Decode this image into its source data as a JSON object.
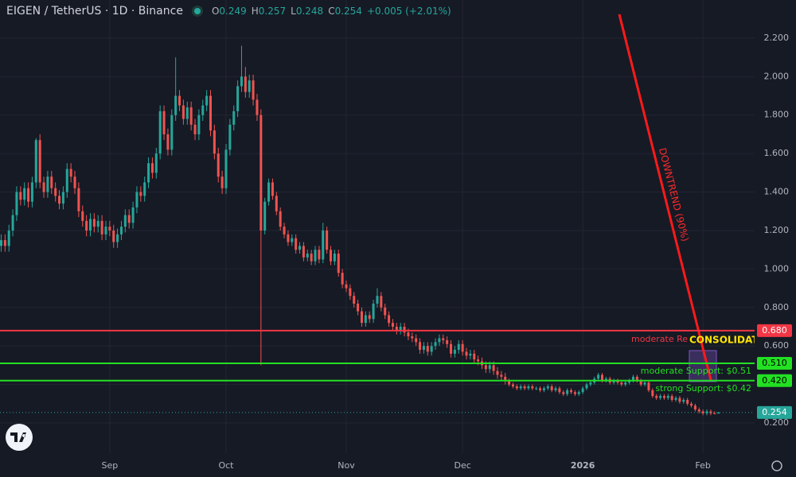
{
  "chart_data": {
    "type": "candlestick",
    "title": "EIGEN / TetherUS · 1D · Binance",
    "ohlc_labels": [
      "O",
      "H",
      "L",
      "C"
    ],
    "change_label": "+0.005 (+2.01%)",
    "up_color": "#26a69a",
    "down_color": "#ef5350",
    "open": [
      1.12,
      1.15,
      1.12,
      1.2,
      1.28,
      1.4,
      1.36,
      1.42,
      1.35,
      1.45,
      1.67,
      1.45,
      1.4,
      1.48,
      1.42,
      1.38,
      1.34,
      1.4,
      1.52,
      1.48,
      1.42,
      1.3,
      1.25,
      1.2,
      1.26,
      1.22,
      1.25,
      1.18,
      1.22,
      1.2,
      1.14,
      1.18,
      1.22,
      1.28,
      1.24,
      1.32,
      1.4,
      1.38,
      1.45,
      1.55,
      1.5,
      1.6,
      1.82,
      1.7,
      1.62,
      1.8,
      1.9,
      1.85,
      1.78,
      1.84,
      1.75,
      1.7,
      1.8,
      1.85,
      1.9,
      1.72,
      1.6,
      1.48,
      1.42,
      1.62,
      1.75,
      1.82,
      1.95,
      2.0,
      1.92,
      1.98,
      1.88,
      1.8,
      1.2,
      1.35,
      1.45,
      1.38,
      1.3,
      1.22,
      1.18,
      1.14,
      1.16,
      1.1,
      1.12,
      1.06,
      1.08,
      1.04,
      1.1,
      1.05,
      1.2,
      1.1,
      1.04,
      1.08,
      0.98,
      0.92,
      0.9,
      0.86,
      0.82,
      0.78,
      0.72,
      0.76,
      0.74,
      0.82,
      0.86,
      0.8,
      0.76,
      0.72,
      0.7,
      0.68,
      0.7,
      0.67,
      0.65,
      0.64,
      0.62,
      0.58,
      0.6,
      0.57,
      0.6,
      0.62,
      0.64,
      0.63,
      0.61,
      0.56,
      0.58,
      0.61,
      0.57,
      0.55,
      0.56,
      0.53,
      0.52,
      0.5,
      0.48,
      0.5,
      0.47,
      0.45,
      0.44,
      0.42,
      0.4,
      0.39,
      0.38,
      0.39,
      0.38,
      0.39,
      0.38,
      0.38,
      0.37,
      0.38,
      0.39,
      0.37,
      0.38,
      0.36,
      0.35,
      0.37,
      0.36,
      0.35,
      0.36,
      0.38,
      0.4,
      0.41,
      0.43,
      0.45,
      0.42,
      0.43,
      0.41,
      0.42,
      0.41,
      0.4,
      0.41,
      0.42,
      0.44,
      0.42,
      0.4,
      0.41,
      0.37,
      0.34,
      0.33,
      0.34,
      0.33,
      0.34,
      0.32,
      0.33,
      0.31,
      0.32,
      0.3,
      0.29,
      0.27,
      0.26,
      0.25,
      0.26,
      0.25,
      0.249
    ],
    "high": [
      1.18,
      1.18,
      1.23,
      1.31,
      1.43,
      1.43,
      1.45,
      1.45,
      1.48,
      1.68,
      1.7,
      1.48,
      1.51,
      1.51,
      1.45,
      1.41,
      1.43,
      1.55,
      1.55,
      1.51,
      1.45,
      1.33,
      1.28,
      1.29,
      1.29,
      1.28,
      1.28,
      1.25,
      1.25,
      1.23,
      1.21,
      1.25,
      1.31,
      1.31,
      1.35,
      1.43,
      1.43,
      1.48,
      1.58,
      1.58,
      1.63,
      1.85,
      1.85,
      1.73,
      1.83,
      2.1,
      1.93,
      1.88,
      1.87,
      1.87,
      1.78,
      1.83,
      1.88,
      1.93,
      1.93,
      1.75,
      1.63,
      1.51,
      1.65,
      1.78,
      1.85,
      1.98,
      2.16,
      2.05,
      2.01,
      2.01,
      1.91,
      1.83,
      1.37,
      1.47,
      1.47,
      1.4,
      1.32,
      1.24,
      1.2,
      1.18,
      1.18,
      1.14,
      1.14,
      1.1,
      1.1,
      1.12,
      1.12,
      1.24,
      1.22,
      1.12,
      1.1,
      1.1,
      1.0,
      0.94,
      0.92,
      0.88,
      0.84,
      0.8,
      0.78,
      0.78,
      0.84,
      0.9,
      0.88,
      0.82,
      0.78,
      0.74,
      0.72,
      0.72,
      0.72,
      0.69,
      0.67,
      0.66,
      0.64,
      0.62,
      0.62,
      0.62,
      0.64,
      0.66,
      0.66,
      0.65,
      0.63,
      0.6,
      0.63,
      0.63,
      0.59,
      0.58,
      0.58,
      0.55,
      0.54,
      0.52,
      0.52,
      0.52,
      0.49,
      0.47,
      0.46,
      0.43,
      0.41,
      0.4,
      0.4,
      0.4,
      0.4,
      0.4,
      0.39,
      0.39,
      0.39,
      0.4,
      0.4,
      0.39,
      0.39,
      0.37,
      0.38,
      0.38,
      0.37,
      0.37,
      0.39,
      0.41,
      0.42,
      0.44,
      0.46,
      0.46,
      0.44,
      0.44,
      0.43,
      0.43,
      0.42,
      0.42,
      0.43,
      0.45,
      0.45,
      0.43,
      0.42,
      0.42,
      0.38,
      0.35,
      0.35,
      0.35,
      0.35,
      0.35,
      0.34,
      0.34,
      0.33,
      0.33,
      0.31,
      0.3,
      0.28,
      0.27,
      0.27,
      0.27,
      0.26,
      0.257
    ],
    "low": [
      1.09,
      1.09,
      1.09,
      1.17,
      1.25,
      1.33,
      1.33,
      1.32,
      1.32,
      1.42,
      1.42,
      1.37,
      1.37,
      1.39,
      1.35,
      1.31,
      1.31,
      1.37,
      1.45,
      1.39,
      1.27,
      1.22,
      1.17,
      1.17,
      1.19,
      1.19,
      1.15,
      1.15,
      1.17,
      1.11,
      1.11,
      1.15,
      1.19,
      1.21,
      1.21,
      1.29,
      1.35,
      1.35,
      1.42,
      1.47,
      1.47,
      1.57,
      1.67,
      1.59,
      1.59,
      1.77,
      1.82,
      1.75,
      1.75,
      1.72,
      1.67,
      1.67,
      1.77,
      1.82,
      1.69,
      1.57,
      1.45,
      1.39,
      1.39,
      1.59,
      1.72,
      1.79,
      1.92,
      1.89,
      1.89,
      1.85,
      1.77,
      0.5,
      1.18,
      1.33,
      1.36,
      1.28,
      1.2,
      1.16,
      1.12,
      1.12,
      1.08,
      1.08,
      1.04,
      1.04,
      1.02,
      1.02,
      1.03,
      1.03,
      1.08,
      1.02,
      1.02,
      0.96,
      0.9,
      0.88,
      0.84,
      0.8,
      0.76,
      0.7,
      0.7,
      0.72,
      0.72,
      0.8,
      0.78,
      0.74,
      0.7,
      0.68,
      0.66,
      0.66,
      0.65,
      0.63,
      0.62,
      0.6,
      0.56,
      0.56,
      0.55,
      0.55,
      0.58,
      0.6,
      0.61,
      0.59,
      0.54,
      0.54,
      0.56,
      0.55,
      0.53,
      0.53,
      0.51,
      0.5,
      0.48,
      0.46,
      0.46,
      0.45,
      0.43,
      0.42,
      0.4,
      0.39,
      0.38,
      0.37,
      0.37,
      0.37,
      0.37,
      0.37,
      0.37,
      0.36,
      0.36,
      0.37,
      0.36,
      0.36,
      0.35,
      0.34,
      0.34,
      0.35,
      0.34,
      0.34,
      0.35,
      0.37,
      0.39,
      0.4,
      0.42,
      0.41,
      0.41,
      0.4,
      0.4,
      0.4,
      0.39,
      0.39,
      0.4,
      0.41,
      0.41,
      0.39,
      0.39,
      0.36,
      0.33,
      0.32,
      0.32,
      0.32,
      0.32,
      0.31,
      0.31,
      0.3,
      0.3,
      0.29,
      0.28,
      0.26,
      0.25,
      0.24,
      0.24,
      0.24,
      0.245,
      0.248
    ],
    "close": [
      1.15,
      1.12,
      1.2,
      1.28,
      1.4,
      1.36,
      1.42,
      1.35,
      1.45,
      1.67,
      1.45,
      1.4,
      1.48,
      1.42,
      1.38,
      1.34,
      1.4,
      1.52,
      1.48,
      1.42,
      1.3,
      1.25,
      1.2,
      1.26,
      1.22,
      1.25,
      1.18,
      1.22,
      1.2,
      1.14,
      1.18,
      1.22,
      1.28,
      1.24,
      1.32,
      1.4,
      1.38,
      1.45,
      1.55,
      1.5,
      1.6,
      1.82,
      1.7,
      1.62,
      1.8,
      1.9,
      1.85,
      1.78,
      1.84,
      1.75,
      1.7,
      1.8,
      1.85,
      1.9,
      1.72,
      1.6,
      1.48,
      1.42,
      1.62,
      1.75,
      1.82,
      1.95,
      2.0,
      1.92,
      1.98,
      1.88,
      1.8,
      1.2,
      1.35,
      1.45,
      1.38,
      1.3,
      1.22,
      1.18,
      1.14,
      1.16,
      1.1,
      1.12,
      1.06,
      1.08,
      1.04,
      1.1,
      1.05,
      1.2,
      1.1,
      1.04,
      1.08,
      0.98,
      0.92,
      0.9,
      0.86,
      0.82,
      0.78,
      0.72,
      0.76,
      0.74,
      0.82,
      0.86,
      0.8,
      0.76,
      0.72,
      0.7,
      0.68,
      0.7,
      0.67,
      0.65,
      0.64,
      0.62,
      0.58,
      0.6,
      0.57,
      0.6,
      0.62,
      0.64,
      0.63,
      0.61,
      0.56,
      0.58,
      0.61,
      0.57,
      0.55,
      0.56,
      0.53,
      0.52,
      0.5,
      0.48,
      0.5,
      0.47,
      0.45,
      0.44,
      0.42,
      0.4,
      0.39,
      0.38,
      0.39,
      0.38,
      0.39,
      0.38,
      0.38,
      0.37,
      0.38,
      0.39,
      0.37,
      0.38,
      0.36,
      0.35,
      0.37,
      0.36,
      0.35,
      0.36,
      0.38,
      0.4,
      0.41,
      0.43,
      0.45,
      0.42,
      0.43,
      0.41,
      0.42,
      0.41,
      0.4,
      0.41,
      0.42,
      0.44,
      0.42,
      0.4,
      0.41,
      0.37,
      0.34,
      0.33,
      0.34,
      0.33,
      0.34,
      0.32,
      0.33,
      0.31,
      0.32,
      0.3,
      0.29,
      0.27,
      0.26,
      0.25,
      0.26,
      0.25,
      0.249,
      0.254
    ],
    "xlim": [
      -0.3,
      193.7
    ],
    "xticks": [
      {
        "value": 28,
        "label": "Sep"
      },
      {
        "value": 58,
        "label": "Oct"
      },
      {
        "value": 89,
        "label": "Nov"
      },
      {
        "value": 119,
        "label": "Dec"
      },
      {
        "value": 150,
        "label": "2026"
      },
      {
        "value": 181,
        "label": "Feb"
      }
    ],
    "ylim": [
      0.043,
      2.398
    ],
    "yticks": [
      {
        "value": 0.2,
        "label": "0.200"
      },
      {
        "value": 0.4,
        "label": "0.400"
      },
      {
        "value": 0.6,
        "label": "0.600"
      },
      {
        "value": 0.8,
        "label": "0.800"
      },
      {
        "value": 1.0,
        "label": "1.000"
      },
      {
        "value": 1.2,
        "label": "1.200"
      },
      {
        "value": 1.4,
        "label": "1.400"
      },
      {
        "value": 1.6,
        "label": "1.600"
      },
      {
        "value": 1.8,
        "label": "1.800"
      },
      {
        "value": 2.0,
        "label": "2.000"
      },
      {
        "value": 2.2,
        "label": "2.200"
      }
    ],
    "grid": true,
    "levels": [
      {
        "value": 0.68,
        "label": "0.680",
        "color": "#f23645",
        "note": "moderate Re"
      },
      {
        "value": 0.51,
        "label": "0.510",
        "color": "#22e022",
        "note": "moderate Support: $0.51"
      },
      {
        "value": 0.42,
        "label": "0.420",
        "color": "#22e022",
        "note": "strong Support: $0.42"
      }
    ],
    "consolidation_label": "CONSOLIDATI",
    "trend_label": "DOWNTREND (90%)"
  }
}
